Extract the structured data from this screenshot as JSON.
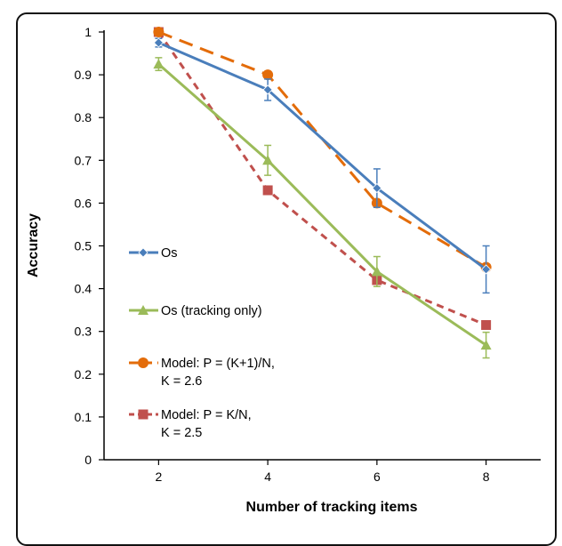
{
  "chart_data": {
    "type": "line",
    "x": [
      2,
      4,
      6,
      8
    ],
    "xlabel": "Number of tracking items",
    "ylabel": "Accuracy",
    "xlim": [
      1,
      9
    ],
    "ylim": [
      0,
      1
    ],
    "x_ticks": [
      "2",
      "4",
      "6",
      "8"
    ],
    "y_ticks": [
      "0",
      "0.1",
      "0.2",
      "0.3",
      "0.4",
      "0.5",
      "0.6",
      "0.7",
      "0.8",
      "0.9",
      "1"
    ],
    "grid": false,
    "legend_position": "left",
    "series": [
      {
        "name": "Os",
        "values": [
          0.975,
          0.865,
          0.635,
          0.445
        ],
        "error": [
          0.01,
          0.025,
          0.045,
          0.055
        ],
        "color": "#4a7ebb",
        "marker": "diamond",
        "dash": "solid"
      },
      {
        "name": "Os (tracking only)",
        "values": [
          0.925,
          0.7,
          0.44,
          0.268
        ],
        "error": [
          0.015,
          0.035,
          0.035,
          0.03
        ],
        "color": "#9bbb59",
        "marker": "triangle",
        "dash": "solid"
      },
      {
        "name": "Model: P = (K+1)/N,",
        "name_line2": "K = 2.6",
        "values": [
          1.0,
          0.9,
          0.6,
          0.45
        ],
        "color": "#e36c0a",
        "marker": "circle",
        "dash": "long"
      },
      {
        "name": "Model: P = K/N,",
        "name_line2": "K = 2.5",
        "values": [
          1.0,
          0.63,
          0.42,
          0.315
        ],
        "color": "#c0504d",
        "marker": "square",
        "dash": "short"
      }
    ]
  }
}
